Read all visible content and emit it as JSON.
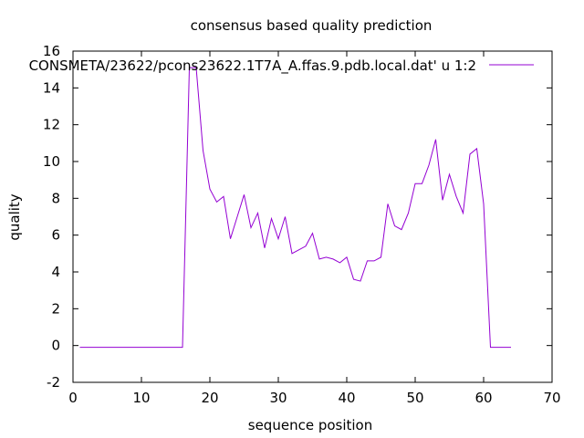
{
  "chart_data": {
    "type": "line",
    "title": "consensus based quality prediction",
    "xlabel": "sequence position",
    "ylabel": "quality",
    "xlim": [
      0,
      70
    ],
    "ylim": [
      -2,
      16
    ],
    "xticks": [
      0,
      10,
      20,
      30,
      40,
      50,
      60,
      70
    ],
    "yticks": [
      -2,
      0,
      2,
      4,
      6,
      8,
      10,
      12,
      14,
      16
    ],
    "grid": false,
    "legend_position": "top-right",
    "colors": {
      "series": "#9400d3",
      "axes": "#000000",
      "background": "#ffffff"
    },
    "series": [
      {
        "name": "CONSMETA/23622/pcons23622.1T7A_A.ffas.9.pdb.local.dat' u 1:2",
        "x": [
          1,
          2,
          3,
          4,
          5,
          6,
          7,
          8,
          9,
          10,
          11,
          12,
          13,
          14,
          15,
          16,
          17,
          18,
          19,
          20,
          21,
          22,
          23,
          24,
          25,
          26,
          27,
          28,
          29,
          30,
          31,
          32,
          33,
          34,
          35,
          36,
          37,
          38,
          39,
          40,
          41,
          42,
          43,
          44,
          45,
          46,
          47,
          48,
          49,
          50,
          51,
          52,
          53,
          54,
          55,
          56,
          57,
          58,
          59,
          60,
          61,
          62,
          63,
          64
        ],
        "y": [
          -0.1,
          -0.1,
          -0.1,
          -0.1,
          -0.1,
          -0.1,
          -0.1,
          -0.1,
          -0.1,
          -0.1,
          -0.1,
          -0.1,
          -0.1,
          -0.1,
          -0.1,
          -0.1,
          15.1,
          15.1,
          10.6,
          8.5,
          7.8,
          8.1,
          5.8,
          7.0,
          8.2,
          6.4,
          7.2,
          5.3,
          6.9,
          5.8,
          7.0,
          5.0,
          5.2,
          5.4,
          6.1,
          4.7,
          4.8,
          4.7,
          4.5,
          4.8,
          3.6,
          3.5,
          4.6,
          4.6,
          4.8,
          7.7,
          6.5,
          6.3,
          7.2,
          8.8,
          8.8,
          9.8,
          11.2,
          7.9,
          9.3,
          8.1,
          7.2,
          10.4,
          10.7,
          7.7,
          -0.1,
          -0.1,
          -0.1,
          -0.1
        ]
      }
    ]
  }
}
